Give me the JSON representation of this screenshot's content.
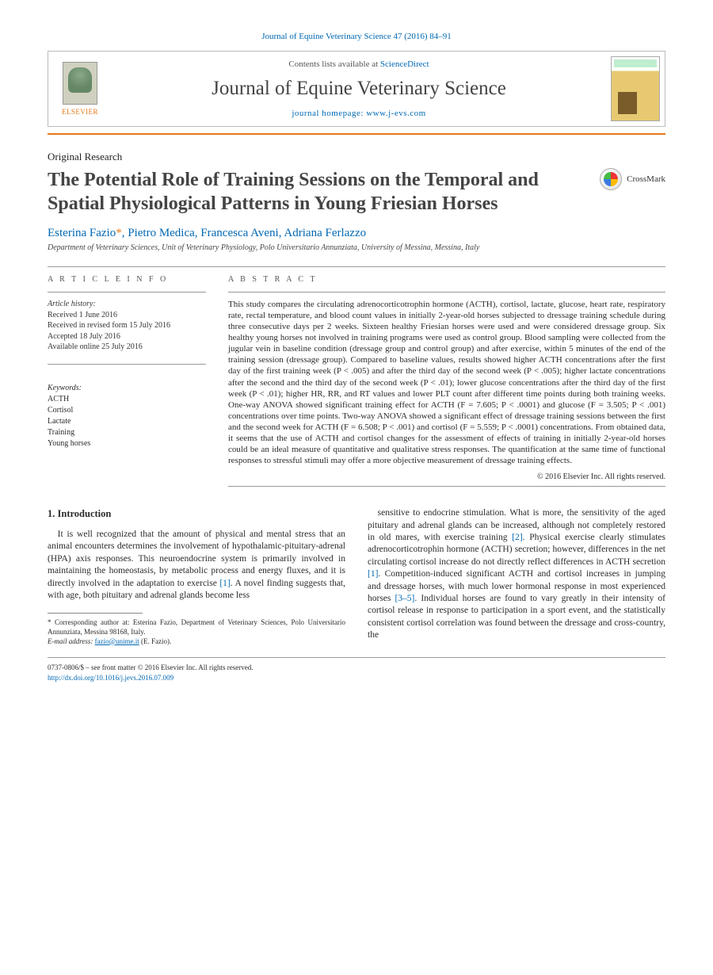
{
  "journal_header": "Journal of Equine Veterinary Science 47 (2016) 84–91",
  "contents_line_prefix": "Contents lists available at ",
  "contents_line_link": "ScienceDirect",
  "journal_name": "Journal of Equine Veterinary Science",
  "homepage_label": "journal homepage: ",
  "homepage_url": "www.j-evs.com",
  "elsevier_label": "ELSEVIER",
  "crossmark_label": "CrossMark",
  "article_type": "Original Research",
  "article_title": "The Potential Role of Training Sessions on the Temporal and Spatial Physiological Patterns in Young Friesian Horses",
  "authors_html": {
    "a1": "Esterina Fazio",
    "a2": "Pietro Medica",
    "a3": "Francesca Aveni",
    "a4": "Adriana Ferlazzo",
    "corr": "*"
  },
  "affiliation": "Department of Veterinary Sciences, Unit of Veterinary Physiology, Polo Universitario Annunziata, University of Messina, Messina, Italy",
  "article_info_head": "A R T I C L E   I N F O",
  "abstract_head": "A B S T R A C T",
  "history": {
    "label": "Article history:",
    "received": "Received 1 June 2016",
    "revised": "Received in revised form 15 July 2016",
    "accepted": "Accepted 18 July 2016",
    "online": "Available online 25 July 2016"
  },
  "keywords_label": "Keywords:",
  "keywords": [
    "ACTH",
    "Cortisol",
    "Lactate",
    "Training",
    "Young horses"
  ],
  "abstract_text": "This study compares the circulating adrenocorticotrophin hormone (ACTH), cortisol, lactate, glucose, heart rate, respiratory rate, rectal temperature, and blood count values in initially 2-year-old horses subjected to dressage training schedule during three consecutive days per 2 weeks. Sixteen healthy Friesian horses were used and were considered dressage group. Six healthy young horses not involved in training programs were used as control group. Blood sampling were collected from the jugular vein in baseline condition (dressage group and control group) and after exercise, within 5 minutes of the end of the training session (dressage group). Compared to baseline values, results showed higher ACTH concentrations after the first day of the first training week (P < .005) and after the third day of the second week (P < .005); higher lactate concentrations after the second and the third day of the second week (P < .01); lower glucose concentrations after the third day of the first week (P < .01); higher HR, RR, and RT values and lower PLT count after different time points during both training weeks. One-way ANOVA showed significant training effect for ACTH (F = 7.605; P < .0001) and glucose (F = 3.505; P < .001) concentrations over time points. Two-way ANOVA showed a significant effect of dressage training sessions between the first and the second week for ACTH (F = 6.508; P < .001) and cortisol (F = 5.559; P < .0001) concentrations. From obtained data, it seems that the use of ACTH and cortisol changes for the assessment of effects of training in initially 2-year-old horses could be an ideal measure of quantitative and qualitative stress responses. The quantification at the same time of functional responses to stressful stimuli may offer a more objective measurement of dressage training effects.",
  "copyright_abstract": "© 2016 Elsevier Inc. All rights reserved.",
  "intro_head": "1. Introduction",
  "intro_col1": "It is well recognized that the amount of physical and mental stress that an animal encounters determines the involvement of hypothalamic-pituitary-adrenal (HPA) axis responses. This neuroendocrine system is primarily involved in maintaining the homeostasis, by metabolic process and energy fluxes, and it is directly involved in the adaptation to exercise [1]. A novel finding suggests that, with age, both pituitary and adrenal glands become less",
  "intro_col2": "sensitive to endocrine stimulation. What is more, the sensitivity of the aged pituitary and adrenal glands can be increased, although not completely restored in old mares, with exercise training [2]. Physical exercise clearly stimulates adrenocorticotrophin hormone (ACTH) secretion; however, differences in the net circulating cortisol increase do not directly reflect differences in ACTH secretion [1]. Competition-induced significant ACTH and cortisol increases in jumping and dressage horses, with much lower hormonal response in most experienced horses [3–5]. Individual horses are found to vary greatly in their intensity of cortisol release in response to participation in a sport event, and the statistically consistent cortisol correlation was found between the dressage and cross-country, the",
  "footnote": {
    "corr_label": "* Corresponding author at: Esterina Fazio, Department of Veterinary Sciences, Polo Universitario Annunziata, Messina 98168, Italy.",
    "email_label": "E-mail address:",
    "email": "fazio@unime.it",
    "email_name": "(E. Fazio)."
  },
  "footer": {
    "issn": "0737-0806/$ – see front matter © 2016 Elsevier Inc. All rights reserved.",
    "doi": "http://dx.doi.org/10.1016/j.jevs.2016.07.009"
  },
  "colors": {
    "link": "#0068b3",
    "orange": "#e67817",
    "rule": "#999999",
    "text": "#2b2b2b"
  }
}
